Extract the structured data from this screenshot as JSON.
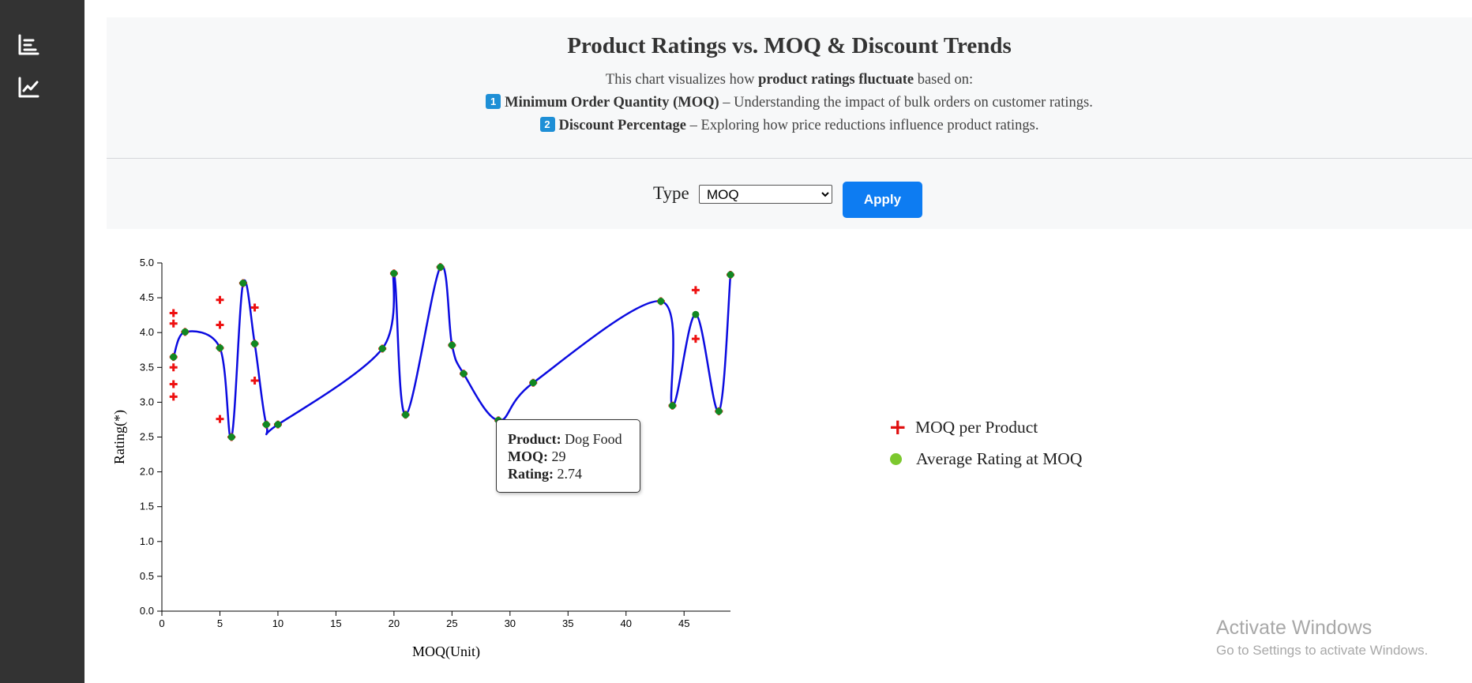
{
  "sidebar": {
    "items": [
      {
        "icon": "bar-chart-icon"
      },
      {
        "icon": "line-chart-icon"
      }
    ]
  },
  "header": {
    "title": "Product Ratings vs. MOQ & Discount Trends",
    "desc_pre": "This chart visualizes how ",
    "desc_bold": "product ratings fluctuate",
    "desc_post": " based on:",
    "point1_num": "1",
    "point1_bold": "Minimum Order Quantity (MOQ)",
    "point1_text": " – Understanding the impact of bulk orders on customer ratings.",
    "point2_num": "2",
    "point2_bold": "Discount Percentage",
    "point2_text": " – Exploring how price reductions influence product ratings."
  },
  "controls": {
    "type_label": "Type",
    "type_selected": "MOQ",
    "apply_label": "Apply"
  },
  "tooltip": {
    "product_label": "Product:",
    "product_value": " Dog Food",
    "moq_label": "MOQ:",
    "moq_value": " 29",
    "rating_label": "Rating:",
    "rating_value": " 2.74"
  },
  "legend": {
    "moq_per_product": "MOQ per Product",
    "average_rating": "Average Rating at MOQ"
  },
  "watermark": {
    "title": "Activate Windows",
    "subtitle": "Go to Settings to activate Windows."
  },
  "colors": {
    "line": "#0b0be0",
    "avg_point": "#118822",
    "product_point": "#ee1111",
    "legend_dot": "#7cc82e",
    "button": "#0d7cf2",
    "sidebar": "#333333"
  },
  "chart_data": {
    "type": "line",
    "xlabel": "MOQ(Unit)",
    "ylabel": "Rating(*)",
    "xlim": [
      0,
      49
    ],
    "ylim": [
      0,
      5
    ],
    "xticks": [
      0,
      5,
      10,
      15,
      20,
      25,
      30,
      35,
      40,
      45
    ],
    "yticks": [
      0.0,
      0.5,
      1.0,
      1.5,
      2.0,
      2.5,
      3.0,
      3.5,
      4.0,
      4.5,
      5.0
    ],
    "grid": false,
    "legend_position": "right",
    "series": [
      {
        "name": "Average Rating at MOQ",
        "style": "curve-with-dots",
        "x": [
          1,
          2,
          5,
          6,
          7,
          8,
          9,
          10,
          19,
          20,
          21,
          24,
          25,
          26,
          29,
          32,
          43,
          44,
          46,
          48,
          49
        ],
        "y": [
          3.65,
          4.01,
          3.78,
          2.5,
          4.71,
          3.84,
          2.68,
          2.68,
          3.77,
          4.85,
          2.82,
          4.94,
          3.82,
          3.41,
          2.74,
          3.28,
          4.45,
          2.95,
          4.26,
          2.87,
          4.83
        ]
      },
      {
        "name": "MOQ per Product",
        "style": "plus-markers",
        "x": [
          1,
          1,
          1,
          1,
          1,
          1,
          2,
          5,
          5,
          5,
          5,
          6,
          7,
          8,
          8,
          8,
          9,
          10,
          19,
          20,
          21,
          24,
          25,
          26,
          29,
          32,
          43,
          44,
          46,
          46,
          48,
          49
        ],
        "y": [
          4.28,
          4.13,
          3.5,
          3.26,
          3.08,
          3.65,
          4.01,
          4.47,
          4.11,
          2.76,
          3.78,
          2.5,
          4.71,
          4.36,
          3.31,
          3.84,
          2.68,
          2.68,
          3.77,
          4.85,
          2.82,
          4.94,
          3.82,
          3.41,
          2.74,
          3.28,
          4.45,
          2.95,
          4.61,
          3.91,
          2.87,
          4.83
        ]
      }
    ]
  }
}
